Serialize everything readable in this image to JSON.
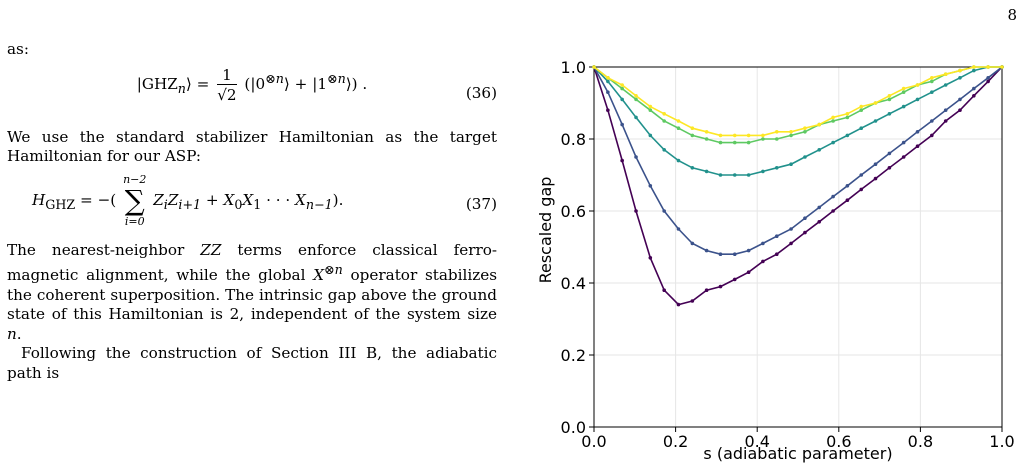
{
  "page_number": "8",
  "text": {
    "as": "as:",
    "eq36_num": "(36)",
    "para1": "We use the standard stabilizer Hamiltonian as the target Hamiltonian for our ASP:",
    "eq37_num": "(37)",
    "para2_a": "The nearest-neighbor ",
    "para2_zz": "ZZ",
    "para2_b": " terms enforce classical ferro-magnetic alignment, while the global ",
    "para2_x": "X",
    "para2_c": " operator stabilizes the coherent superposition. The intrinsic gap above the ground state of this Hamiltonian is 2, independent of the system size ",
    "para2_n": "n",
    "para2_d": ".",
    "para3": "Following the construction of Section III B, the adiabatic path is"
  },
  "equations": {
    "ghz_lhs": "|GHZ",
    "ghz_sub": "n",
    "ghz_rhs": "(|0",
    "ghz_rhs2": "⟩ + |1",
    "ghz_rhs3": "⟩) .",
    "frac_num": "1",
    "frac_den": "√2",
    "h_lhs": "H",
    "h_sub": "GHZ",
    "sum_top": "n−2",
    "sum_bot": "i=0",
    "h_terms": "Z",
    "h_tail": "X",
    "h_dots": "· · ·"
  },
  "chart_data": {
    "type": "line",
    "xlabel": "s (adiabatic parameter)",
    "ylabel": "Rescaled gap",
    "xlim": [
      0.0,
      1.0
    ],
    "ylim": [
      0.0,
      1.0
    ],
    "xticks": [
      "0.0",
      "0.2",
      "0.4",
      "0.6",
      "0.8",
      "1.0"
    ],
    "yticks": [
      "0.0",
      "0.2",
      "0.4",
      "0.6",
      "0.8",
      "1.0"
    ],
    "grid": true,
    "x": [
      0.0,
      0.034,
      0.069,
      0.103,
      0.138,
      0.172,
      0.207,
      0.241,
      0.276,
      0.31,
      0.345,
      0.379,
      0.414,
      0.448,
      0.483,
      0.517,
      0.552,
      0.586,
      0.621,
      0.655,
      0.69,
      0.724,
      0.759,
      0.793,
      0.828,
      0.862,
      0.897,
      0.931,
      0.966,
      1.0
    ],
    "series": [
      {
        "color": "#440154",
        "values": [
          1.0,
          0.88,
          0.74,
          0.6,
          0.47,
          0.38,
          0.34,
          0.35,
          0.38,
          0.39,
          0.41,
          0.43,
          0.46,
          0.48,
          0.51,
          0.54,
          0.57,
          0.6,
          0.63,
          0.66,
          0.69,
          0.72,
          0.75,
          0.78,
          0.81,
          0.85,
          0.88,
          0.92,
          0.96,
          1.0
        ]
      },
      {
        "color": "#3b528b",
        "values": [
          1.0,
          0.93,
          0.84,
          0.75,
          0.67,
          0.6,
          0.55,
          0.51,
          0.49,
          0.48,
          0.48,
          0.49,
          0.51,
          0.53,
          0.55,
          0.58,
          0.61,
          0.64,
          0.67,
          0.7,
          0.73,
          0.76,
          0.79,
          0.82,
          0.85,
          0.88,
          0.91,
          0.94,
          0.97,
          1.0
        ]
      },
      {
        "color": "#21918c",
        "values": [
          1.0,
          0.96,
          0.91,
          0.86,
          0.81,
          0.77,
          0.74,
          0.72,
          0.71,
          0.7,
          0.7,
          0.7,
          0.71,
          0.72,
          0.73,
          0.75,
          0.77,
          0.79,
          0.81,
          0.83,
          0.85,
          0.87,
          0.89,
          0.91,
          0.93,
          0.95,
          0.97,
          0.99,
          1.0,
          1.0
        ]
      },
      {
        "color": "#5ec962",
        "values": [
          1.0,
          0.97,
          0.94,
          0.91,
          0.88,
          0.85,
          0.83,
          0.81,
          0.8,
          0.79,
          0.79,
          0.79,
          0.8,
          0.8,
          0.81,
          0.82,
          0.84,
          0.85,
          0.86,
          0.88,
          0.9,
          0.91,
          0.93,
          0.95,
          0.96,
          0.98,
          0.99,
          1.0,
          1.0,
          1.0
        ]
      },
      {
        "color": "#fde725",
        "values": [
          1.0,
          0.97,
          0.95,
          0.92,
          0.89,
          0.87,
          0.85,
          0.83,
          0.82,
          0.81,
          0.81,
          0.81,
          0.81,
          0.82,
          0.82,
          0.83,
          0.84,
          0.86,
          0.87,
          0.89,
          0.9,
          0.92,
          0.94,
          0.95,
          0.97,
          0.98,
          0.99,
          1.0,
          1.0,
          1.0
        ]
      }
    ]
  }
}
